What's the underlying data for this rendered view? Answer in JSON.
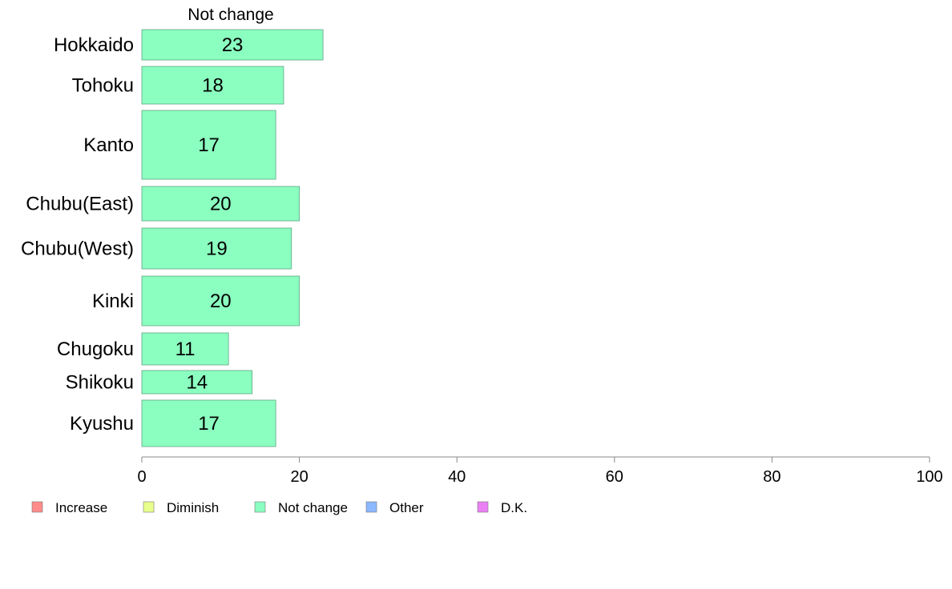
{
  "chart_data": {
    "type": "bar",
    "orientation": "horizontal",
    "title": "Not change",
    "categories": [
      "Hokkaido",
      "Tohoku",
      "Kanto",
      "Chubu(East)",
      "Chubu(West)",
      "Kinki",
      "Chugoku",
      "Shikoku",
      "Kyushu"
    ],
    "series": [
      {
        "name": "Not change",
        "color": "#8BFFC0",
        "values": [
          23,
          18,
          17,
          20,
          19,
          20,
          11,
          14,
          17
        ]
      }
    ],
    "xlim": [
      0,
      100
    ],
    "xticks": [
      0,
      20,
      40,
      60,
      80,
      100
    ],
    "legend": {
      "placement": "bottom-left",
      "items": [
        {
          "label": "Increase",
          "color": "#FF8B8B"
        },
        {
          "label": "Diminish",
          "color": "#E8FF8B"
        },
        {
          "label": "Not change",
          "color": "#8BFFC0"
        },
        {
          "label": "Other",
          "color": "#8BB8FF"
        },
        {
          "label": "D.K.",
          "color": "#EB80F5"
        }
      ]
    },
    "grid": false
  }
}
